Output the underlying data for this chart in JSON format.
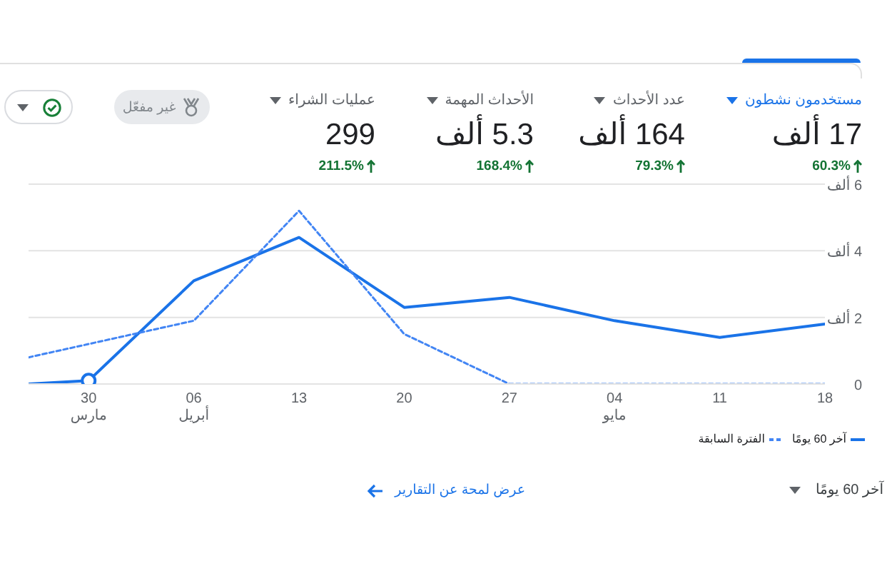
{
  "chart_data": [
    {
      "type": "other",
      "annotations": [
        "مستخدمون نشطون",
        "17 ألف",
        "60.3%",
        "عدد الأحداث",
        "164 ألف",
        "79.3%",
        "الأحداث المهمة",
        "5.3 ألف",
        "168.4%",
        "عمليات الشراء",
        "299",
        "211.5%",
        "غير مفعّل"
      ]
    },
    {
      "type": "line",
      "x": [
        "--03-26",
        "--03-30",
        "--04-06",
        "--04-13",
        "--04-20",
        "--04-27",
        "--05-04",
        "--05-11",
        "--05-18"
      ],
      "series": [
        {
          "name": "آخر 60 يومًا",
          "color": "#1a73e8",
          "line_style": "solid",
          "values": [
            0,
            0.1,
            3.1,
            4.4,
            2.3,
            2.6,
            1.9,
            1.4,
            1.8
          ]
        },
        {
          "name": "الفترة السابقة",
          "color": "#4285f4",
          "line_style": "dashed",
          "x": [
            "--03-26",
            "--04-06",
            "--04-13",
            "--04-20",
            "--04-27",
            "--05-04",
            "--05-11",
            "--05-18"
          ],
          "values": [
            0.8,
            1.9,
            5.2,
            1.5,
            0,
            0,
            0,
            0
          ]
        },
        {
          "type": "scatter",
          "color": "#1a73e8",
          "marker": "circle",
          "x": [
            "--03-30"
          ],
          "values": [
            0.1
          ]
        }
      ],
      "xlim": [
        "--03-26",
        "--05-18"
      ],
      "xticks": [
        {
          "value": "--03-30",
          "label": "30\nمارس"
        },
        {
          "value": "--04-06",
          "label": "06\nأبريل"
        },
        {
          "value": "--04-13",
          "label": "13"
        },
        {
          "value": "--04-20",
          "label": "20"
        },
        {
          "value": "--04-27",
          "label": "27"
        },
        {
          "value": "--05-04",
          "label": "04\nمايو"
        },
        {
          "value": "--05-11",
          "label": "11"
        },
        {
          "value": "--05-18",
          "label": "18"
        }
      ],
      "ylim": [
        0,
        6
      ],
      "yticks": [
        0,
        {
          "value": 2,
          "label": "2 ألف"
        },
        {
          "value": 4,
          "label": "4 ألف"
        },
        {
          "value": 6,
          "label": "6 ألف"
        }
      ],
      "grid": "y",
      "legend": "bottom right",
      "annotations": [
        "آخر 60 يومًا",
        "عرض لمحة عن التقارير"
      ]
    }
  ]
}
